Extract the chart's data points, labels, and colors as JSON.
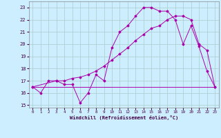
{
  "xlabel": "Windchill (Refroidissement éolien,°C)",
  "bg_color": "#cceeff",
  "grid_color": "#aacccc",
  "line_color": "#aa00aa",
  "ylim": [
    14.8,
    23.5
  ],
  "xlim": [
    -0.5,
    23.5
  ],
  "yticks": [
    15,
    16,
    17,
    18,
    19,
    20,
    21,
    22,
    23
  ],
  "xticks": [
    0,
    1,
    2,
    3,
    4,
    5,
    6,
    7,
    8,
    9,
    10,
    11,
    12,
    13,
    14,
    15,
    16,
    17,
    18,
    19,
    20,
    21,
    22,
    23
  ],
  "line1_x": [
    0,
    1,
    2,
    3,
    4,
    5,
    6,
    7,
    8,
    9,
    10,
    11,
    12,
    13,
    14,
    15,
    16,
    17,
    18,
    19,
    20,
    21,
    22,
    23
  ],
  "line1_y": [
    16.5,
    16.0,
    17.0,
    17.0,
    16.7,
    16.7,
    15.2,
    16.0,
    17.5,
    17.0,
    19.7,
    21.0,
    21.5,
    22.3,
    23.0,
    23.0,
    22.7,
    22.7,
    22.0,
    20.0,
    21.5,
    19.8,
    17.8,
    16.5
  ],
  "line2_x": [
    0,
    3,
    4,
    5,
    6,
    7,
    8,
    9,
    10,
    11,
    12,
    13,
    14,
    15,
    16,
    17,
    18,
    19,
    20,
    21,
    22,
    23
  ],
  "line2_y": [
    16.5,
    17.0,
    17.0,
    17.2,
    17.3,
    17.5,
    17.8,
    18.2,
    18.7,
    19.2,
    19.7,
    20.3,
    20.8,
    21.3,
    21.5,
    22.0,
    22.3,
    22.3,
    22.0,
    20.0,
    19.5,
    16.5
  ],
  "line3_x": [
    0,
    4,
    22,
    23
  ],
  "line3_y": [
    16.5,
    16.5,
    16.5,
    16.5
  ]
}
